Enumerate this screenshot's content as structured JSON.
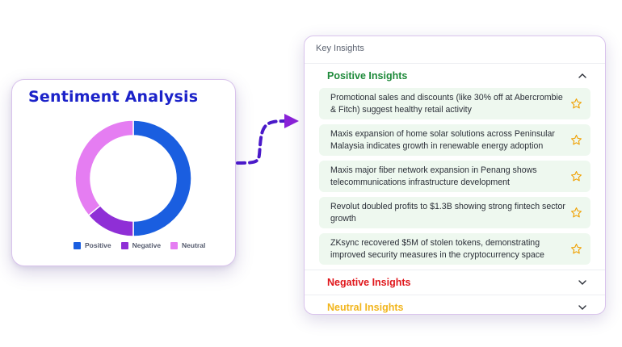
{
  "sentiment": {
    "title": "Sentiment Analysis",
    "legend": [
      {
        "label": "Positive",
        "color": "#1a5ee0"
      },
      {
        "label": "Negative",
        "color": "#8f2fd6"
      },
      {
        "label": "Neutral",
        "color": "#e57df2"
      }
    ]
  },
  "chart_data": {
    "type": "pie",
    "title": "Sentiment Analysis",
    "categories": [
      "Positive",
      "Negative",
      "Neutral"
    ],
    "values": [
      50,
      14,
      36
    ],
    "colors": [
      "#1a5ee0",
      "#8f2fd6",
      "#e57df2"
    ],
    "legend_position": "bottom"
  },
  "insights": {
    "header": "Key Insights",
    "positive": {
      "title": "Positive Insights",
      "color": "#1e8a3a",
      "items": [
        {
          "text": "Promotional sales and discounts (like 30% off at Abercrombie & Fitch) suggest healthy retail activity"
        },
        {
          "text": "Maxis expansion of home solar solutions across Peninsular Malaysia indicates growth in renewable energy adoption"
        },
        {
          "text": "Maxis major fiber network expansion in Penang shows telecommunications infrastructure development"
        },
        {
          "text": "Revolut doubled profits to $1.3B showing strong fintech sector growth"
        },
        {
          "text": "ZKsync recovered $5M of stolen tokens, demonstrating improved security measures in the cryptocurrency space"
        }
      ]
    },
    "negative": {
      "title": "Negative Insights",
      "color": "#e0161b"
    },
    "neutral": {
      "title": "Neutral Insights",
      "color": "#f2b51c"
    }
  }
}
